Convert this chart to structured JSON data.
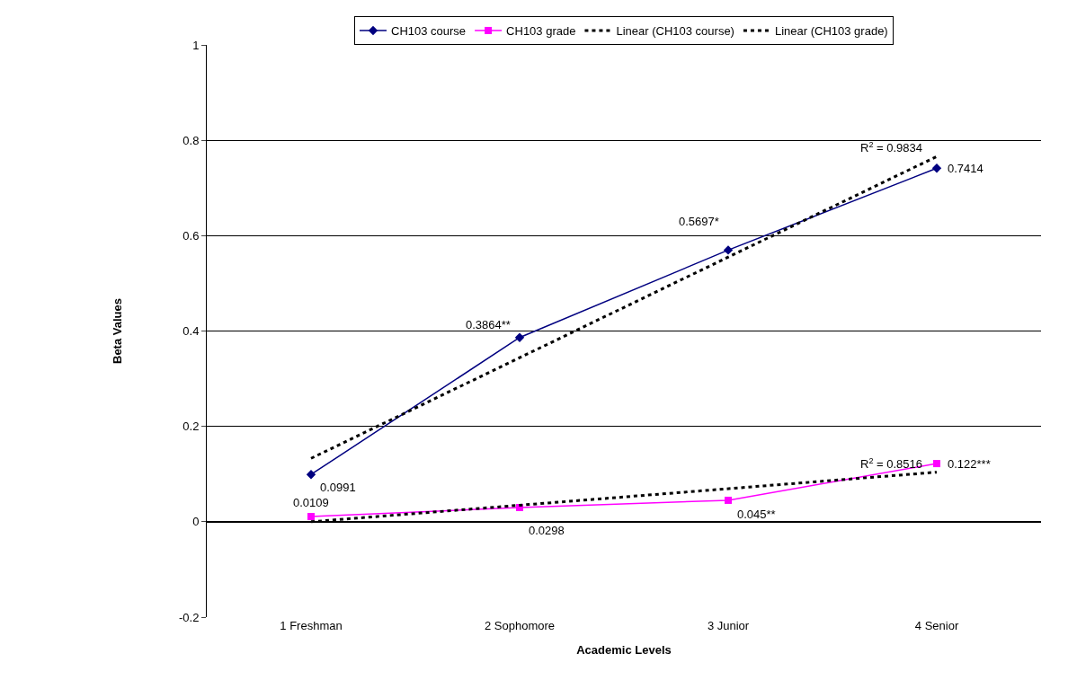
{
  "chart_data": {
    "type": "line",
    "xlabel": "Academic Levels",
    "ylabel": "Beta Values",
    "categories": [
      "1 Freshman",
      "2 Sophomore",
      "3 Junior",
      "4 Senior"
    ],
    "series": [
      {
        "name": "CH103 course",
        "color": "#000080",
        "marker": "diamond",
        "line_style": "solid",
        "values": [
          0.0991,
          0.3864,
          0.5697,
          0.7414
        ],
        "value_labels": [
          "0.0991",
          "0.3864**",
          "0.5697*",
          "0.7414"
        ]
      },
      {
        "name": "CH103 grade",
        "color": "#ff00ff",
        "marker": "square",
        "line_style": "solid",
        "values": [
          0.0109,
          0.0298,
          0.045,
          0.122
        ],
        "value_labels": [
          "0.0109",
          "0.0298",
          "0.045**",
          "0.122***"
        ]
      },
      {
        "name": "Linear (CH103 course)",
        "type": "line",
        "color": "#000000",
        "marker": "none",
        "line_style": "dashed",
        "x": [
          "1 Freshman",
          "4 Senior"
        ],
        "values": [
          0.133,
          0.766
        ]
      },
      {
        "name": "Linear (CH103 grade)",
        "type": "line",
        "color": "#000000",
        "marker": "none",
        "line_style": "dashed",
        "x": [
          "1 Freshman",
          "4 Senior"
        ],
        "values": [
          0.0,
          0.104
        ]
      }
    ],
    "annotations": [
      "R$^{2}$ = 0.9834",
      "R$^{2}$ = 0.8516"
    ],
    "ylim": [
      -0.2,
      1
    ],
    "yticks": [
      -0.2,
      0,
      0.2,
      0.4,
      0.6,
      0.8,
      1
    ],
    "grid": "y",
    "legend": "top"
  }
}
